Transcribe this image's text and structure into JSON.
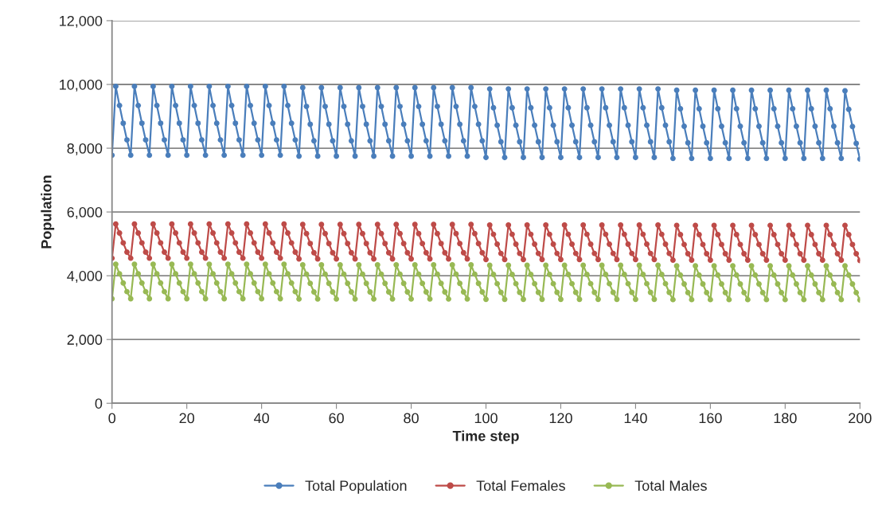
{
  "chart_data": {
    "type": "line",
    "xlabel": "Time step",
    "ylabel": "Population",
    "x": [
      0,
      1,
      2,
      3,
      4,
      5,
      6,
      7,
      8,
      9,
      10,
      11,
      12,
      13,
      14,
      15,
      16,
      17,
      18,
      19,
      20,
      21,
      22,
      23,
      24,
      25,
      26,
      27,
      28,
      29,
      30,
      31,
      32,
      33,
      34,
      35,
      36,
      37,
      38,
      39,
      40,
      41,
      42,
      43,
      44,
      45,
      46,
      47,
      48,
      49,
      50,
      51,
      52,
      53,
      54,
      55,
      56,
      57,
      58,
      59,
      60,
      61,
      62,
      63,
      64,
      65,
      66,
      67,
      68,
      69,
      70,
      71,
      72,
      73,
      74,
      75,
      76,
      77,
      78,
      79,
      80,
      81,
      82,
      83,
      84,
      85,
      86,
      87,
      88,
      89,
      90,
      91,
      92,
      93,
      94,
      95,
      96,
      97,
      98,
      99,
      100,
      101,
      102,
      103,
      104,
      105,
      106,
      107,
      108,
      109,
      110,
      111,
      112,
      113,
      114,
      115,
      116,
      117,
      118,
      119,
      120,
      121,
      122,
      123,
      124,
      125,
      126,
      127,
      128,
      129,
      130,
      131,
      132,
      133,
      134,
      135,
      136,
      137,
      138,
      139,
      140,
      141,
      142,
      143,
      144,
      145,
      146,
      147,
      148,
      149,
      150,
      151,
      152,
      153,
      154,
      155,
      156,
      157,
      158,
      159,
      160,
      161,
      162,
      163,
      164,
      165,
      166,
      167,
      168,
      169,
      170,
      171,
      172,
      173,
      174,
      175,
      176,
      177,
      178,
      179,
      180,
      181,
      182,
      183,
      184,
      185,
      186,
      187,
      188,
      189,
      190,
      191,
      192,
      193,
      194,
      195,
      196,
      197,
      198,
      199,
      200
    ],
    "xlim": [
      0,
      200
    ],
    "xticks": [
      0,
      20,
      40,
      60,
      80,
      100,
      120,
      140,
      160,
      180,
      200
    ],
    "ylim": [
      0,
      12000
    ],
    "yticks": [
      0,
      {
        "value": 2000,
        "label": "2,000"
      },
      {
        "value": 4000,
        "label": "4,000"
      },
      {
        "value": 6000,
        "label": "6,000"
      },
      {
        "value": 8000,
        "label": "8,000"
      },
      {
        "value": 10000,
        "label": "10,000"
      },
      {
        "value": 12000,
        "label": "12,000"
      }
    ],
    "grid": "y",
    "legend": "bottom",
    "marker": "circle",
    "line_style": "solid",
    "series": [
      {
        "name": "Total Population",
        "color": "#4a7ebb",
        "values": [
          7780,
          9940,
          9340,
          8780,
          8260,
          7780,
          9940,
          9340,
          8780,
          8260,
          7780,
          9940,
          9340,
          8780,
          8260,
          7780,
          9940,
          9340,
          8780,
          8260,
          7780,
          9940,
          9340,
          8780,
          8260,
          7780,
          9940,
          9340,
          8780,
          8260,
          7780,
          9940,
          9340,
          8780,
          8260,
          7780,
          9940,
          9340,
          8780,
          8260,
          7780,
          9940,
          9340,
          8780,
          8260,
          7780,
          9940,
          9340,
          8780,
          8260,
          7750,
          9900,
          9310,
          8750,
          8230,
          7750,
          9900,
          9310,
          8750,
          8230,
          7750,
          9900,
          9310,
          8750,
          8230,
          7750,
          9900,
          9310,
          8750,
          8230,
          7750,
          9900,
          9310,
          8750,
          8230,
          7750,
          9900,
          9310,
          8750,
          8230,
          7750,
          9900,
          9310,
          8750,
          8230,
          7750,
          9900,
          9310,
          8750,
          8230,
          7750,
          9900,
          9310,
          8750,
          8230,
          7750,
          9900,
          9310,
          8750,
          8230,
          7710,
          9860,
          9270,
          8720,
          8200,
          7710,
          9860,
          9270,
          8720,
          8200,
          7710,
          9860,
          9270,
          8720,
          8200,
          7710,
          9860,
          9270,
          8720,
          8200,
          7710,
          9860,
          9270,
          8720,
          8200,
          7710,
          9860,
          9270,
          8720,
          8200,
          7710,
          9860,
          9270,
          8720,
          8200,
          7710,
          9860,
          9270,
          8720,
          8200,
          7710,
          9860,
          9270,
          8720,
          8200,
          7710,
          9860,
          9270,
          8720,
          8200,
          7680,
          9820,
          9240,
          8690,
          8170,
          7680,
          9820,
          9240,
          8690,
          8170,
          7680,
          9820,
          9240,
          8690,
          8170,
          7680,
          9820,
          9240,
          8690,
          8170,
          7680,
          9820,
          9240,
          8690,
          8170,
          7680,
          9820,
          9240,
          8690,
          8170,
          7680,
          9820,
          9240,
          8690,
          8170,
          7680,
          9820,
          9240,
          8690,
          8170,
          7680,
          9820,
          9240,
          8690,
          8170,
          7680,
          9800,
          9220,
          8680,
          8150,
          7660
        ]
      },
      {
        "name": "Total Females",
        "color": "#be4b48",
        "values": [
          4550,
          5620,
          5340,
          5030,
          4740,
          4550,
          5620,
          5340,
          5030,
          4740,
          4550,
          5620,
          5340,
          5030,
          4740,
          4550,
          5620,
          5340,
          5030,
          4740,
          4550,
          5620,
          5340,
          5030,
          4740,
          4550,
          5620,
          5340,
          5030,
          4740,
          4550,
          5620,
          5340,
          5030,
          4740,
          4550,
          5620,
          5340,
          5030,
          4740,
          4550,
          5620,
          5340,
          5030,
          4740,
          4550,
          5620,
          5340,
          5030,
          4740,
          4530,
          5610,
          5320,
          5010,
          4720,
          4530,
          5610,
          5320,
          5010,
          4720,
          4530,
          5610,
          5320,
          5010,
          4720,
          4530,
          5610,
          5320,
          5010,
          4720,
          4530,
          5610,
          5320,
          5010,
          4720,
          4530,
          5610,
          5320,
          5010,
          4720,
          4530,
          5610,
          5320,
          5010,
          4720,
          4530,
          5610,
          5320,
          5010,
          4720,
          4530,
          5610,
          5320,
          5010,
          4720,
          4530,
          5610,
          5320,
          5010,
          4720,
          4510,
          5590,
          5300,
          4990,
          4700,
          4510,
          5590,
          5300,
          4990,
          4700,
          4510,
          5590,
          5300,
          4990,
          4700,
          4510,
          5590,
          5300,
          4990,
          4700,
          4510,
          5590,
          5300,
          4990,
          4700,
          4510,
          5590,
          5300,
          4990,
          4700,
          4510,
          5590,
          5300,
          4990,
          4700,
          4510,
          5590,
          5300,
          4990,
          4700,
          4510,
          5590,
          5300,
          4990,
          4700,
          4510,
          5590,
          5300,
          4990,
          4700,
          4490,
          5580,
          5290,
          4980,
          4690,
          4490,
          5580,
          5290,
          4980,
          4690,
          4490,
          5580,
          5290,
          4980,
          4690,
          4490,
          5580,
          5290,
          4980,
          4690,
          4490,
          5580,
          5290,
          4980,
          4690,
          4490,
          5580,
          5290,
          4980,
          4690,
          4490,
          5580,
          5290,
          4980,
          4690,
          4490,
          5580,
          5290,
          4980,
          4690,
          4490,
          5580,
          5290,
          4980,
          4690,
          4490,
          5580,
          5290,
          4980,
          4690,
          4480
        ]
      },
      {
        "name": "Total Males",
        "color": "#98b954",
        "values": [
          3280,
          4360,
          4060,
          3770,
          3500,
          3280,
          4360,
          4060,
          3770,
          3500,
          3280,
          4360,
          4060,
          3770,
          3500,
          3280,
          4360,
          4060,
          3770,
          3500,
          3280,
          4360,
          4060,
          3770,
          3500,
          3280,
          4360,
          4060,
          3770,
          3500,
          3280,
          4360,
          4060,
          3770,
          3500,
          3280,
          4360,
          4060,
          3770,
          3500,
          3280,
          4360,
          4060,
          3770,
          3500,
          3280,
          4360,
          4060,
          3770,
          3500,
          3270,
          4340,
          4050,
          3760,
          3490,
          3270,
          4340,
          4050,
          3760,
          3490,
          3270,
          4340,
          4050,
          3760,
          3490,
          3270,
          4340,
          4050,
          3760,
          3490,
          3270,
          4340,
          4050,
          3760,
          3490,
          3270,
          4340,
          4050,
          3760,
          3490,
          3270,
          4340,
          4050,
          3760,
          3490,
          3270,
          4340,
          4050,
          3760,
          3490,
          3270,
          4340,
          4050,
          3760,
          3490,
          3270,
          4340,
          4050,
          3760,
          3490,
          3260,
          4330,
          4040,
          3750,
          3480,
          3260,
          4330,
          4040,
          3750,
          3480,
          3260,
          4330,
          4040,
          3750,
          3480,
          3260,
          4330,
          4040,
          3750,
          3480,
          3260,
          4330,
          4040,
          3750,
          3480,
          3260,
          4330,
          4040,
          3750,
          3480,
          3260,
          4330,
          4040,
          3750,
          3480,
          3260,
          4330,
          4040,
          3750,
          3480,
          3260,
          4330,
          4040,
          3750,
          3480,
          3260,
          4330,
          4040,
          3750,
          3480,
          3250,
          4310,
          4020,
          3740,
          3470,
          3250,
          4310,
          4020,
          3740,
          3470,
          3250,
          4310,
          4020,
          3740,
          3470,
          3250,
          4310,
          4020,
          3740,
          3470,
          3250,
          4310,
          4020,
          3740,
          3470,
          3250,
          4310,
          4020,
          3740,
          3470,
          3250,
          4310,
          4020,
          3740,
          3470,
          3250,
          4310,
          4020,
          3740,
          3470,
          3250,
          4310,
          4020,
          3740,
          3470,
          3250,
          4310,
          4020,
          3740,
          3470,
          3240
        ]
      }
    ]
  }
}
